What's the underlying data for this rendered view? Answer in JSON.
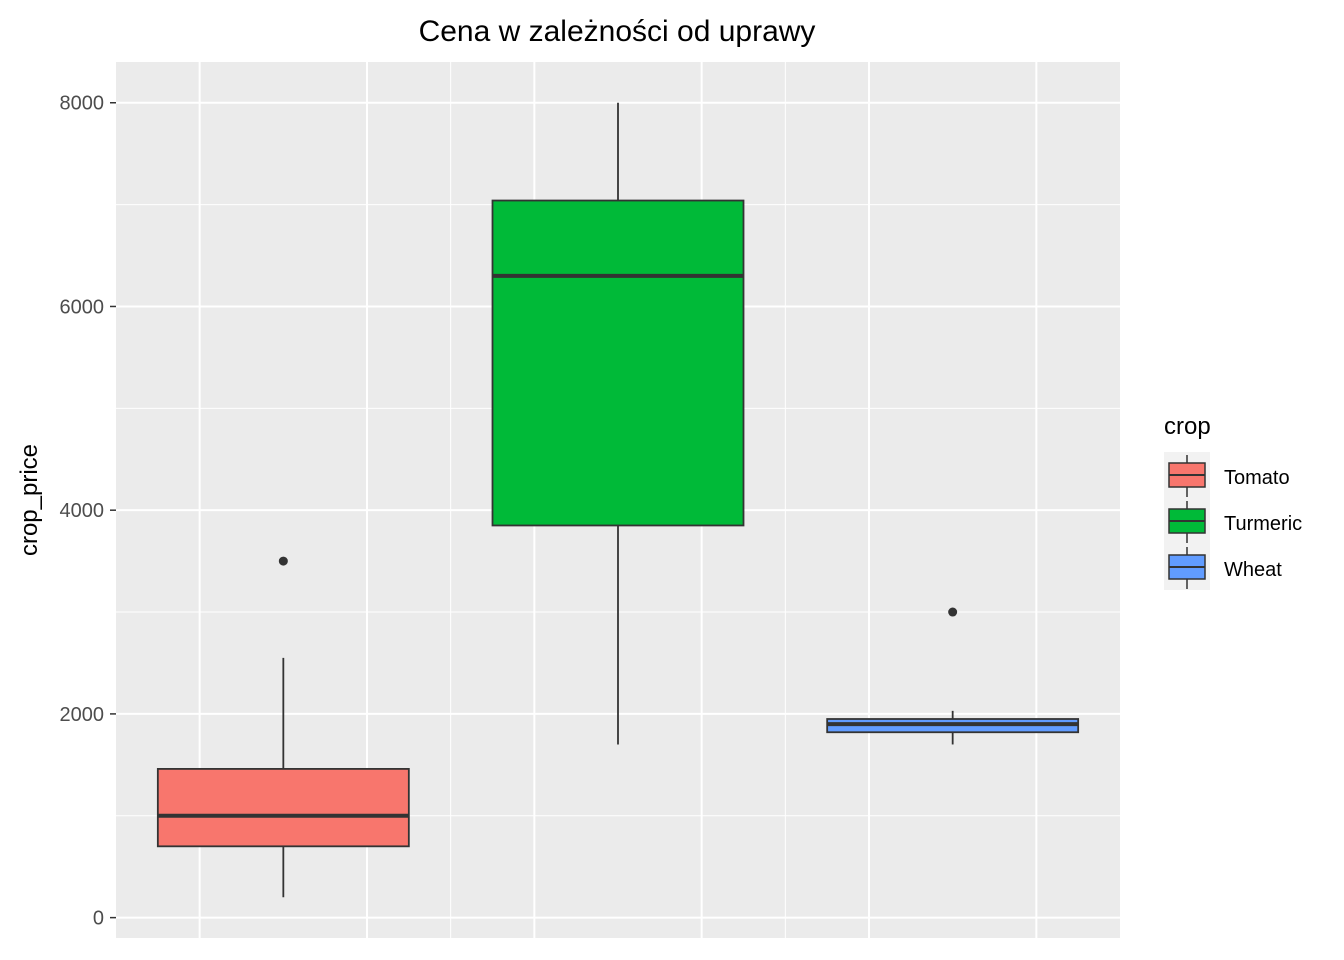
{
  "chart_data": {
    "type": "boxplot",
    "title": "Cena w zależności od uprawy",
    "xlabel": "",
    "ylabel": "crop_price",
    "ylim": [
      -200,
      8400
    ],
    "yticks": [
      0,
      2000,
      4000,
      6000,
      8000
    ],
    "grid": true,
    "legend": {
      "title": "crop",
      "position": "right"
    },
    "series": [
      {
        "name": "Tomato",
        "color": "#F8766D",
        "whisker_low": 200,
        "q1": 700,
        "median": 1000,
        "q3": 1460,
        "whisker_high": 2550,
        "outliers": [
          3500
        ]
      },
      {
        "name": "Turmeric",
        "color": "#00BA38",
        "whisker_low": 1700,
        "q1": 3850,
        "median": 6300,
        "q3": 7040,
        "whisker_high": 8000,
        "outliers": []
      },
      {
        "name": "Wheat",
        "color": "#619CFF",
        "whisker_low": 1700,
        "q1": 1820,
        "median": 1900,
        "q3": 1950,
        "whisker_high": 2030,
        "outliers": [
          3000
        ]
      }
    ]
  }
}
